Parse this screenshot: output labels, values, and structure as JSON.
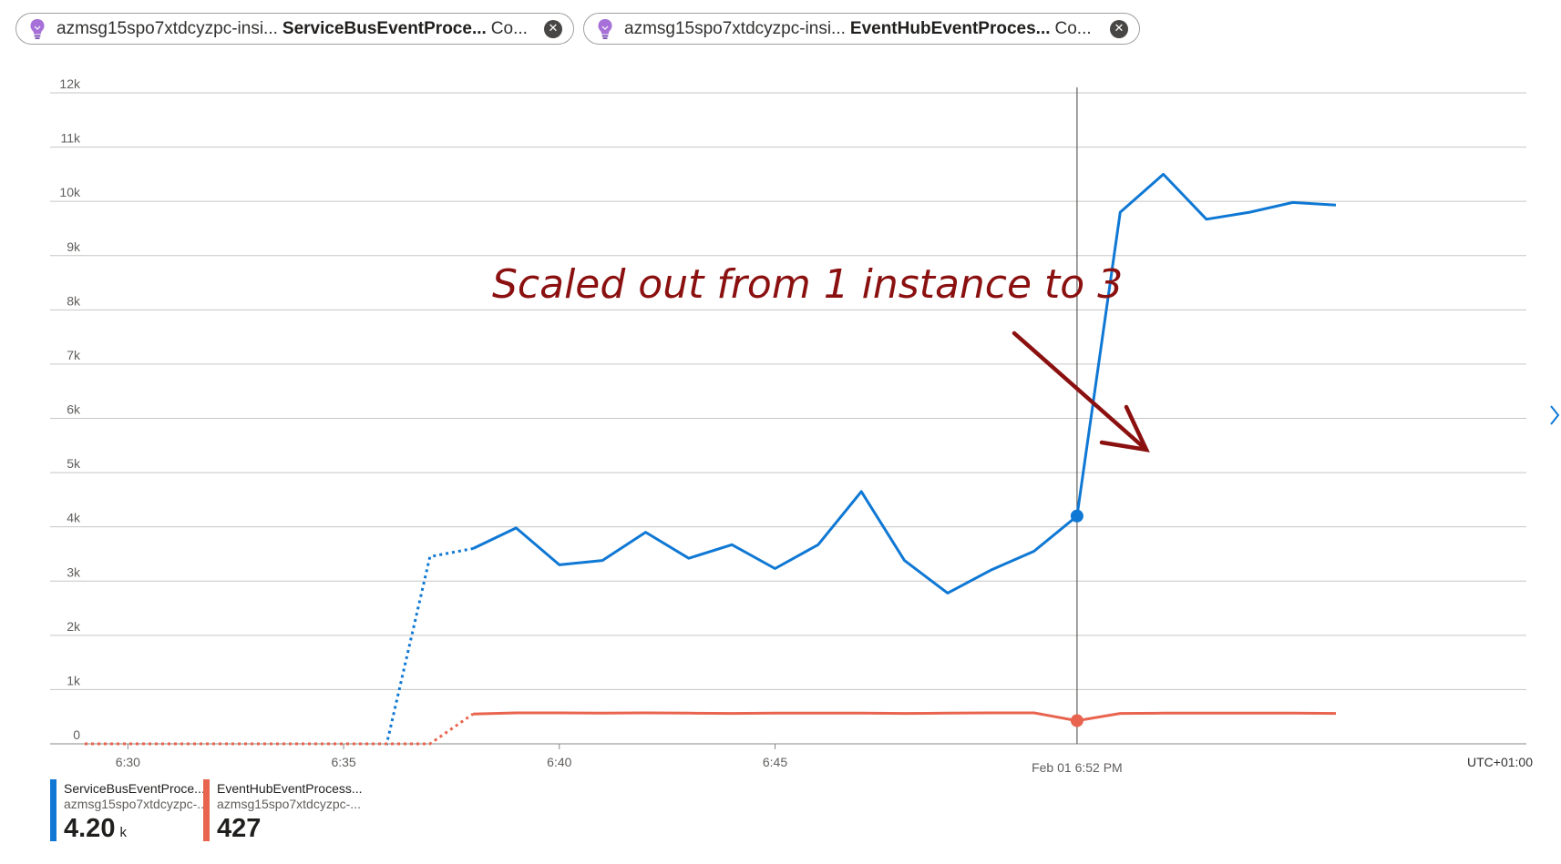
{
  "pills": [
    {
      "resource": "azmsg15spo7xtdcyzpc-insi...",
      "metric": "ServiceBusEventProce...",
      "aggregation": "Co...",
      "icon": "lightbulb-icon",
      "close_icon": "close-circle-icon"
    },
    {
      "resource": "azmsg15spo7xtdcyzpc-insi...",
      "metric": "EventHubEventProces...",
      "aggregation": "Co...",
      "icon": "lightbulb-icon",
      "close_icon": "close-circle-icon"
    }
  ],
  "legend": [
    {
      "name": "ServiceBusEventProce...",
      "sub": "azmsg15spo7xtdcyzpc-...",
      "value": "4.20",
      "unit": "k",
      "color": "#0f78d4"
    },
    {
      "name": "EventHubEventProcess...",
      "sub": "azmsg15spo7xtdcyzpc-...",
      "value": "427",
      "unit": "",
      "color": "#e8644e"
    }
  ],
  "chart_data": {
    "type": "line",
    "ylim": [
      0,
      12000
    ],
    "y_ticks": [
      0,
      1000,
      2000,
      3000,
      4000,
      5000,
      6000,
      7000,
      8000,
      9000,
      10000,
      11000,
      12000
    ],
    "y_tick_labels": [
      "0",
      "1k",
      "2k",
      "3k",
      "4k",
      "5k",
      "6k",
      "7k",
      "8k",
      "9k",
      "10k",
      "11k",
      "12k"
    ],
    "xlim": [
      "6:29",
      "7:01"
    ],
    "x_ticks": [
      "6:30",
      "6:35",
      "6:40",
      "6:45"
    ],
    "x_tick_labels": [
      "6:30",
      "6:35",
      "6:40",
      "6:45"
    ],
    "cursor_time": "6:52",
    "cursor_label": "Feb 01 6:52 PM",
    "timezone_label": "UTC+01:00",
    "annotation_text": "Scaled out from 1 instance to 3",
    "grid": true,
    "series": [
      {
        "name": "ServiceBusEventProce...",
        "color": "#0f78d4",
        "x": [
          "6:29",
          "6:30",
          "6:31",
          "6:32",
          "6:33",
          "6:34",
          "6:35",
          "6:36",
          "6:37",
          "6:38",
          "6:39",
          "6:40",
          "6:41",
          "6:42",
          "6:43",
          "6:44",
          "6:45",
          "6:46",
          "6:47",
          "6:48",
          "6:49",
          "6:50",
          "6:51",
          "6:52",
          "6:53",
          "6:54",
          "6:55",
          "6:56",
          "6:57",
          "6:58"
        ],
        "values": [
          0,
          0,
          0,
          0,
          0,
          0,
          0,
          0,
          3450,
          3600,
          3980,
          3300,
          3380,
          3900,
          3420,
          3670,
          3230,
          3670,
          4650,
          3380,
          2780,
          3200,
          3550,
          4200,
          9800,
          10500,
          9670,
          9800,
          9980,
          9930
        ],
        "dashed_until": "6:38",
        "marker_at": "6:52"
      },
      {
        "name": "EventHubEventProcess...",
        "color": "#e8644e",
        "x": [
          "6:29",
          "6:30",
          "6:31",
          "6:32",
          "6:33",
          "6:34",
          "6:35",
          "6:36",
          "6:37",
          "6:38",
          "6:39",
          "6:40",
          "6:41",
          "6:42",
          "6:43",
          "6:44",
          "6:45",
          "6:46",
          "6:47",
          "6:48",
          "6:49",
          "6:50",
          "6:51",
          "6:52",
          "6:53",
          "6:54",
          "6:55",
          "6:56",
          "6:57",
          "6:58"
        ],
        "values": [
          0,
          0,
          0,
          0,
          0,
          0,
          0,
          0,
          0,
          550,
          570,
          570,
          565,
          570,
          565,
          560,
          565,
          565,
          565,
          560,
          565,
          570,
          570,
          427,
          560,
          565,
          565,
          565,
          565,
          560
        ],
        "dashed_until": "6:38",
        "marker_at": "6:52"
      }
    ]
  }
}
